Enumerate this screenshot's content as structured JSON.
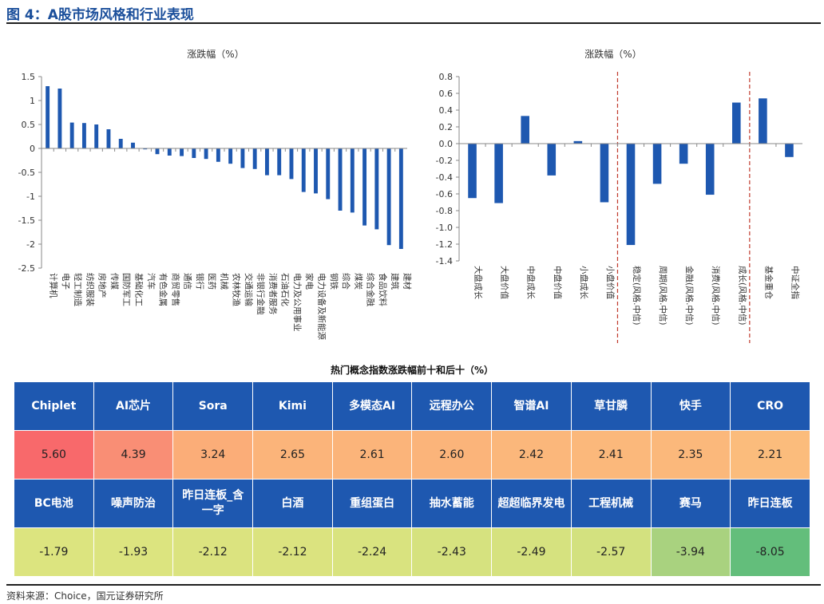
{
  "figure_title": "图 4：A股市场风格和行业表现",
  "source": "资料来源：Choice，国元证券研究所",
  "chart_data": [
    {
      "type": "bar",
      "title": "涨跌幅（%）",
      "categories": [
        "计算机",
        "电子",
        "轻工制造",
        "纺织服装",
        "房地产",
        "传媒",
        "国防军工",
        "基础化工",
        "汽车",
        "有色金属",
        "商贸零售",
        "通信",
        "银行",
        "医药",
        "机械",
        "农林牧渔",
        "交通运输",
        "非银行金融",
        "消费者服务",
        "石油石化",
        "电力及公用事业",
        "家电",
        "电力设备及新能源",
        "钢铁",
        "综合",
        "煤炭",
        "综合金融",
        "食品饮料",
        "建筑",
        "建材"
      ],
      "values": [
        1.3,
        1.25,
        0.54,
        0.53,
        0.5,
        0.4,
        0.2,
        0.12,
        -0.02,
        -0.12,
        -0.15,
        -0.16,
        -0.2,
        -0.22,
        -0.28,
        -0.32,
        -0.41,
        -0.43,
        -0.56,
        -0.56,
        -0.64,
        -0.91,
        -0.94,
        -1.06,
        -1.3,
        -1.34,
        -1.61,
        -1.69,
        -2.02,
        -2.1
      ],
      "ylim": [
        -2.5,
        1.5
      ],
      "yticks": [
        "1.5",
        "1",
        "0.5",
        "0",
        "-0.5",
        "-1",
        "-1.5",
        "-2",
        "-2.5"
      ],
      "ytick_values": [
        1.5,
        1,
        0.5,
        0,
        -0.5,
        -1,
        -1.5,
        -2,
        -2.5
      ],
      "color": "#1e58b0"
    },
    {
      "type": "bar",
      "title": "涨跌幅（%）",
      "categories": [
        "大盘成长",
        "大盘价值",
        "中盘成长",
        "中盘价值",
        "小盘成长",
        "小盘价值",
        "稳定(风格.中信)",
        "周期(风格.中信)",
        "金融(风格.中信)",
        "消费(风格.中信)",
        "成长(风格.中信)",
        "基金重仓",
        "中证全指"
      ],
      "values": [
        -0.65,
        -0.71,
        0.33,
        -0.38,
        0.03,
        -0.7,
        -1.21,
        -0.48,
        -0.24,
        -0.61,
        0.49,
        0.54,
        -0.16
      ],
      "ylim": [
        -1.4,
        0.8
      ],
      "yticks": [
        "0.8",
        "0.6",
        "0.4",
        "0.2",
        "0.0",
        "-0.2",
        "-0.4",
        "-0.6",
        "-0.8",
        "-1.0",
        "-1.2",
        "-1.4"
      ],
      "ytick_values": [
        0.8,
        0.6,
        0.4,
        0.2,
        0,
        -0.2,
        -0.4,
        -0.6,
        -0.8,
        -1.0,
        -1.2,
        -1.4
      ],
      "color": "#1e58b0",
      "separator_color": "#c0392b"
    }
  ],
  "table": {
    "title": "热门概念指数涨跌幅前十和后十（%）",
    "top_names": [
      "Chiplet",
      "AI芯片",
      "Sora",
      "Kimi",
      "多模态AI",
      "远程办公",
      "智谱AI",
      "草甘膦",
      "快手",
      "CRO"
    ],
    "top_values": [
      "5.60",
      "4.39",
      "3.24",
      "2.65",
      "2.61",
      "2.60",
      "2.42",
      "2.41",
      "2.35",
      "2.21"
    ],
    "bottom_names": [
      "BC电池",
      "噪声防治",
      "昨日连板_含一字",
      "白酒",
      "重组蛋白",
      "抽水蓄能",
      "超超临界发电",
      "工程机械",
      "赛马",
      "昨日连板"
    ],
    "bottom_values": [
      "-1.79",
      "-1.93",
      "-2.12",
      "-2.12",
      "-2.24",
      "-2.43",
      "-2.49",
      "-2.57",
      "-3.94",
      "-8.05"
    ],
    "top_colors": [
      "#f8696b",
      "#f98e75",
      "#fbad78",
      "#fbb47a",
      "#fbb47a",
      "#fbb47a",
      "#fbb77b",
      "#fbb87b",
      "#fbb87b",
      "#fbbc7c"
    ],
    "bottom_colors": [
      "#dce47f",
      "#dce47f",
      "#dbe37f",
      "#dbe37f",
      "#d9e37f",
      "#d6e27f",
      "#d6e27f",
      "#d3e17f",
      "#a9d27f",
      "#63be7b"
    ]
  }
}
